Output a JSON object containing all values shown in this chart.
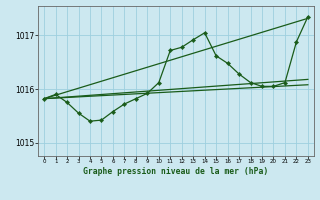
{
  "title": "Graphe pression niveau de la mer (hPa)",
  "background_color": "#cce8f0",
  "grid_color": "#9ecfdf",
  "line_color": "#1a5c1a",
  "ylim": [
    1014.75,
    1017.55
  ],
  "xlim": [
    -0.5,
    23.5
  ],
  "yticks": [
    1015,
    1016,
    1017
  ],
  "xticks": [
    0,
    1,
    2,
    3,
    4,
    5,
    6,
    7,
    8,
    9,
    10,
    11,
    12,
    13,
    14,
    15,
    16,
    17,
    18,
    19,
    20,
    21,
    22,
    23
  ],
  "line1_x": [
    0,
    23
  ],
  "line1_y": [
    1015.82,
    1017.32
  ],
  "line2_x": [
    0,
    23
  ],
  "line2_y": [
    1015.82,
    1016.08
  ],
  "line3_x": [
    0,
    23
  ],
  "line3_y": [
    1015.82,
    1016.18
  ],
  "zigzag_y": [
    1015.82,
    1015.9,
    1015.75,
    1015.55,
    1015.4,
    1015.42,
    1015.58,
    1015.72,
    1015.82,
    1015.92,
    1016.12,
    1016.72,
    1016.78,
    1016.92,
    1017.05,
    1016.62,
    1016.48,
    1016.28,
    1016.12,
    1016.05,
    1016.05,
    1016.12,
    1016.88,
    1017.35
  ]
}
